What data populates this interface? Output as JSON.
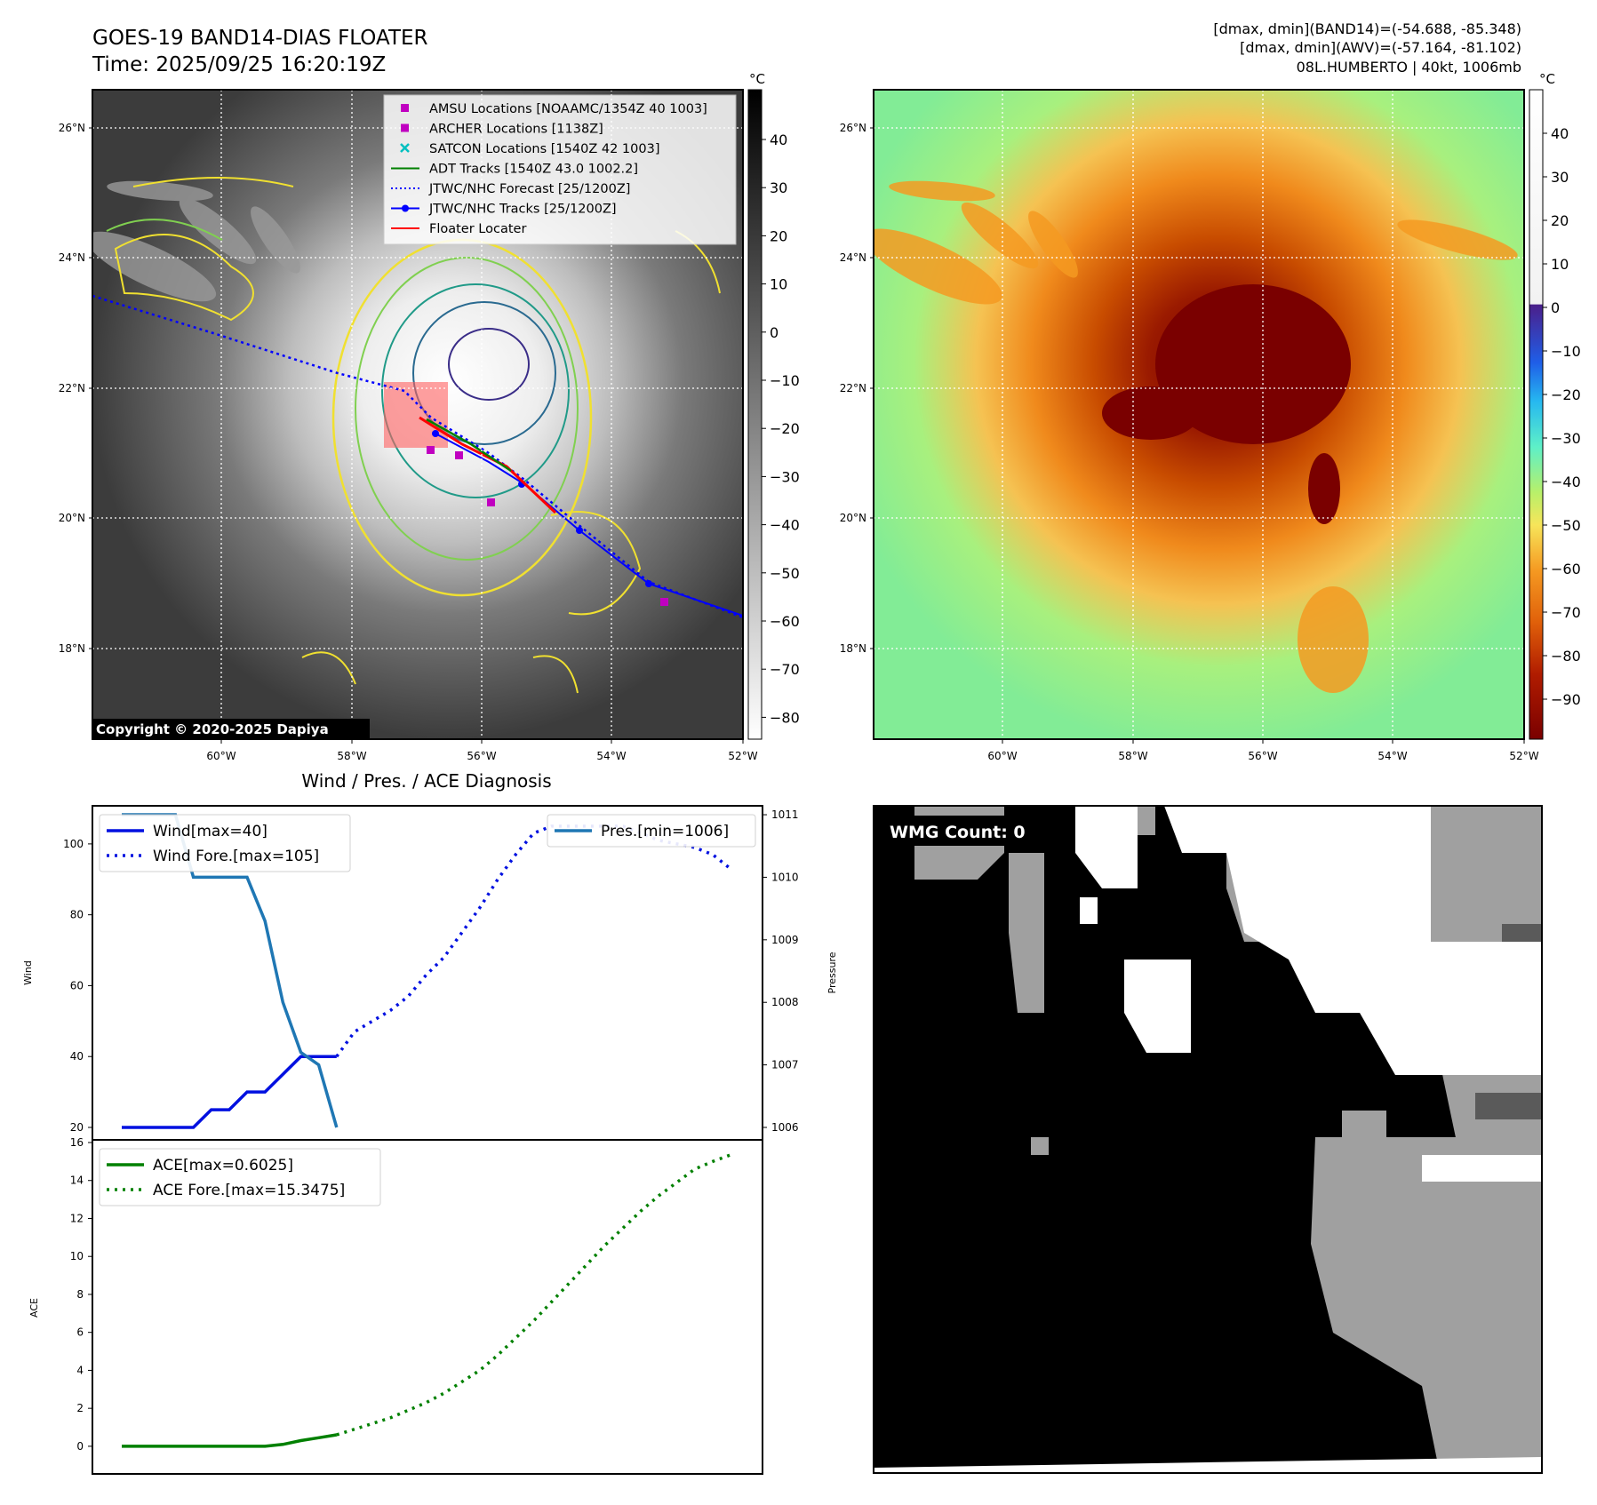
{
  "header": {
    "title_line1": "GOES-19 BAND14-DIAS FLOATER",
    "title_line2": "Time: 2025/09/25 16:20:19Z",
    "right_line1": "[dmax, dmin](BAND14)=(-54.688, -85.348)",
    "right_line2": "[dmax, dmin](AWV)=(-57.164, -81.102)",
    "right_line3": "08L.HUMBERTO | 40kt, 1006mb"
  },
  "colorbar_unit": "°C",
  "map_axes": {
    "lat_ticks": [
      "26°N",
      "24°N",
      "22°N",
      "20°N",
      "18°N"
    ],
    "lon_ticks": [
      "60°W",
      "58°W",
      "56°W",
      "54°W",
      "52°W"
    ]
  },
  "left_colorbar_ticks": [
    "40",
    "30",
    "20",
    "10",
    "0",
    "−10",
    "−20",
    "−30",
    "−40",
    "−50",
    "−60",
    "−70",
    "−80"
  ],
  "right_colorbar_ticks": [
    "40",
    "30",
    "20",
    "10",
    "0",
    "−10",
    "−20",
    "−30",
    "−40",
    "−50",
    "−60",
    "−70",
    "−80",
    "−90"
  ],
  "legend": [
    {
      "label": "AMSU Locations [NOAAMC/1354Z 40 1003]",
      "marker": "square",
      "color": "#c000c0"
    },
    {
      "label": "ARCHER Locations [1138Z]",
      "marker": "square",
      "color": "#c000c0"
    },
    {
      "label": "SATCON Locations [1540Z 42 1003]",
      "marker": "x",
      "color": "#00c0c0"
    },
    {
      "label": "ADT Tracks [1540Z 43.0 1002.2]",
      "marker": "line",
      "color": "#008000"
    },
    {
      "label": "JTWC/NHC Forecast [25/1200Z]",
      "marker": "dotted",
      "color": "#0000ff"
    },
    {
      "label": "JTWC/NHC Tracks [25/1200Z]",
      "marker": "line-dot",
      "color": "#0000ff"
    },
    {
      "label": "Floater Locater",
      "marker": "line",
      "color": "#ff0000"
    }
  ],
  "copyright": "Copyright © 2020-2025 Dapiya",
  "diag_title": "Wind / Pres. / ACE Diagnosis",
  "wmg_label": "WMG Count: 0",
  "chart_data": [
    {
      "type": "line",
      "title": "Wind / Pres. / ACE Diagnosis",
      "ylabel": "Wind",
      "ylabel_right": "Pressure",
      "ylim": [
        20,
        110
      ],
      "ylim_right": [
        1006,
        1011.1
      ],
      "yticks": [
        "20",
        "40",
        "60",
        "80",
        "100"
      ],
      "yticks_right": [
        "1006",
        "1007",
        "1008",
        "1009",
        "1010",
        "1011"
      ],
      "x": [
        0,
        1,
        2,
        3,
        4,
        5,
        6,
        7,
        8,
        9,
        10,
        11,
        12,
        13,
        14,
        15,
        16,
        17,
        18,
        19,
        20,
        21,
        22,
        23,
        24,
        25,
        26,
        27,
        28,
        29,
        30,
        31,
        32,
        33,
        34
      ],
      "series": [
        {
          "name": "Wind[max=40]",
          "axis": "left",
          "style": "solid",
          "color": "#0010e0",
          "values": [
            20,
            20,
            20,
            20,
            20,
            25,
            25,
            30,
            30,
            35,
            40,
            40,
            40,
            null,
            null,
            null,
            null,
            null,
            null,
            null,
            null,
            null,
            null,
            null,
            null,
            null,
            null,
            null,
            null,
            null,
            null,
            null,
            null,
            null,
            null
          ]
        },
        {
          "name": "Wind Fore.[max=105]",
          "axis": "left",
          "style": "dotted",
          "color": "#0010e0",
          "values": [
            null,
            null,
            null,
            null,
            null,
            null,
            null,
            null,
            null,
            null,
            null,
            null,
            40,
            47,
            50,
            53,
            57,
            63,
            68,
            75,
            82,
            90,
            97,
            103,
            105,
            105,
            105,
            105,
            105,
            103,
            101,
            100,
            99,
            97,
            93
          ]
        },
        {
          "name": "Pres.[min=1006]",
          "axis": "right",
          "style": "solid",
          "color": "#1f77b4",
          "values": [
            1011,
            1011,
            1011,
            1011,
            1010,
            1010,
            1010,
            1010,
            1009.3,
            1008,
            1007.2,
            1007,
            1006,
            null,
            null,
            null,
            null,
            null,
            null,
            null,
            null,
            null,
            null,
            null,
            null,
            null,
            null,
            null,
            null,
            null,
            null,
            null,
            null,
            null,
            null
          ]
        }
      ]
    },
    {
      "type": "line",
      "ylabel": "ACE",
      "ylim": [
        -0.8,
        16
      ],
      "yticks": [
        "0",
        "2",
        "4",
        "6",
        "8",
        "10",
        "12",
        "14",
        "16"
      ],
      "x": [
        0,
        1,
        2,
        3,
        4,
        5,
        6,
        7,
        8,
        9,
        10,
        11,
        12,
        13,
        14,
        15,
        16,
        17,
        18,
        19,
        20,
        21,
        22,
        23,
        24,
        25,
        26,
        27,
        28,
        29,
        30,
        31,
        32,
        33,
        34
      ],
      "series": [
        {
          "name": "ACE[max=0.6025]",
          "style": "solid",
          "color": "#008000",
          "values": [
            0,
            0,
            0,
            0,
            0,
            0,
            0,
            0,
            0,
            0.1,
            0.3,
            0.45,
            0.6025,
            null,
            null,
            null,
            null,
            null,
            null,
            null,
            null,
            null,
            null,
            null,
            null,
            null,
            null,
            null,
            null,
            null,
            null,
            null,
            null,
            null,
            null
          ]
        },
        {
          "name": "ACE Fore.[max=15.3475]",
          "style": "dotted",
          "color": "#008000",
          "values": [
            null,
            null,
            null,
            null,
            null,
            null,
            null,
            null,
            null,
            null,
            null,
            null,
            0.6025,
            0.9,
            1.2,
            1.5,
            1.9,
            2.3,
            2.8,
            3.4,
            4.0,
            4.8,
            5.7,
            6.6,
            7.6,
            8.6,
            9.6,
            10.6,
            11.5,
            12.4,
            13.2,
            13.9,
            14.6,
            15.0,
            15.3475
          ]
        }
      ]
    }
  ]
}
